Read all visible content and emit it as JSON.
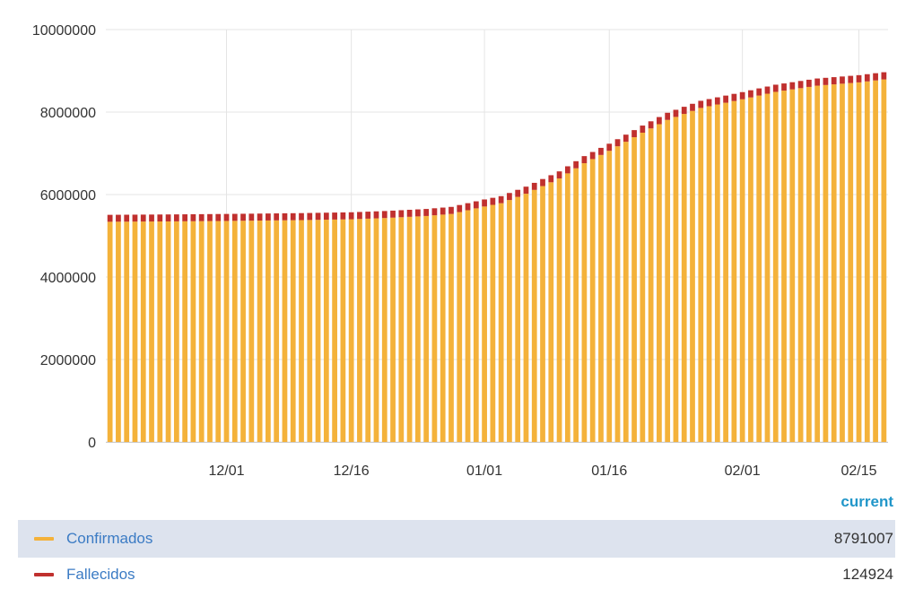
{
  "chart_data": {
    "type": "bar",
    "x_start": "11/17",
    "x_end": "02/18",
    "xticks": [
      "12/01",
      "12/16",
      "01/01",
      "01/16",
      "02/01",
      "02/15"
    ],
    "yticks": [
      "0",
      "2000000",
      "4000000",
      "6000000",
      "8000000",
      "10000000"
    ],
    "ylim": [
      0,
      10000000
    ],
    "grid": true,
    "stacked": true,
    "series": [
      {
        "name": "Confirmados",
        "color": "#f4b23a",
        "keypoints": [
          [
            "11/17",
            5340000
          ],
          [
            "11/25",
            5350000
          ],
          [
            "12/01",
            5360000
          ],
          [
            "12/10",
            5380000
          ],
          [
            "12/16",
            5400000
          ],
          [
            "12/20",
            5430000
          ],
          [
            "12/25",
            5480000
          ],
          [
            "12/28",
            5530000
          ],
          [
            "01/01",
            5710000
          ],
          [
            "01/03",
            5790000
          ],
          [
            "01/06",
            6020000
          ],
          [
            "01/10",
            6390000
          ],
          [
            "01/13",
            6760000
          ],
          [
            "01/16",
            7060000
          ],
          [
            "01/20",
            7500000
          ],
          [
            "01/23",
            7810000
          ],
          [
            "01/27",
            8100000
          ],
          [
            "02/01",
            8310000
          ],
          [
            "02/05",
            8490000
          ],
          [
            "02/10",
            8640000
          ],
          [
            "02/15",
            8720000
          ],
          [
            "02/18",
            8791007
          ]
        ]
      },
      {
        "name": "Fallecidos",
        "color": "#c0302e",
        "keypoints": [
          [
            "11/17",
            120000
          ],
          [
            "12/01",
            121000
          ],
          [
            "01/01",
            122000
          ],
          [
            "02/01",
            124000
          ],
          [
            "02/18",
            124924
          ]
        ]
      }
    ]
  },
  "legend": {
    "header": "current",
    "rows": [
      {
        "name": "Confirmados",
        "value": "8791007",
        "color": "#f4b23a"
      },
      {
        "name": "Fallecidos",
        "value": "124924",
        "color": "#c0302e"
      }
    ]
  }
}
